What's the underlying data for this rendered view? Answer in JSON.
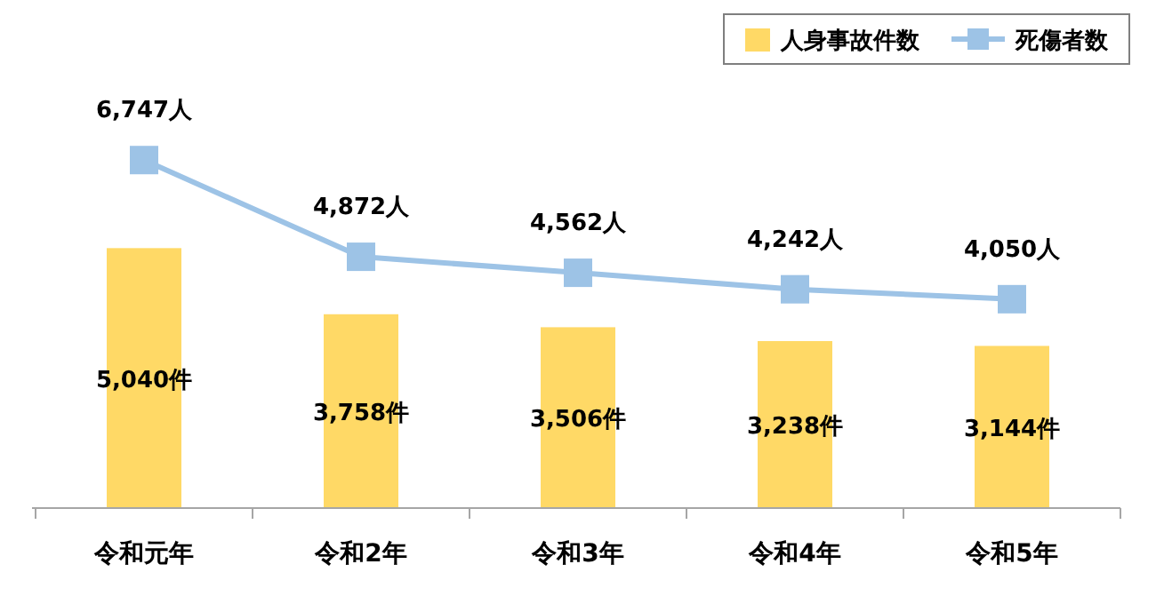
{
  "chart_data": {
    "type": "bar",
    "categories": [
      "令和元年",
      "令和2年",
      "令和3年",
      "令和4年",
      "令和5年"
    ],
    "series": [
      {
        "name": "人身事故件数",
        "color": "#ffd966",
        "values": [
          5040,
          3758,
          3506,
          3238,
          3144
        ],
        "value_labels": [
          "5,040件",
          "3,758件",
          "3,506件",
          "3,238件",
          "3,144件"
        ]
      },
      {
        "name": "死傷者数",
        "type": "line",
        "color": "#9dc3e6",
        "marker": "square",
        "values": [
          6747,
          4872,
          4562,
          4242,
          4050
        ],
        "value_labels": [
          "6,747人",
          "4,872人",
          "4,562人",
          "4,242人",
          "4,050人"
        ]
      }
    ],
    "legend": "top right",
    "grid": false
  }
}
